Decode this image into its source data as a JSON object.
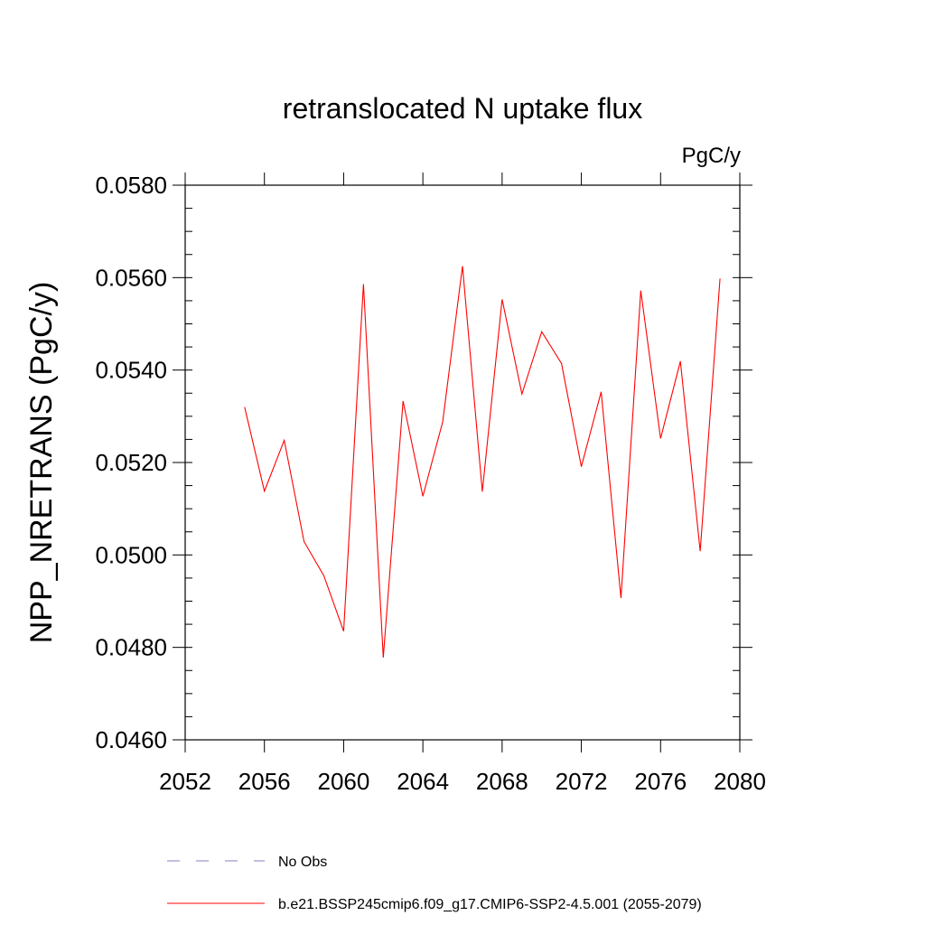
{
  "chart_data": {
    "type": "line",
    "title": "retranslocated N uptake flux",
    "units_label": "PgC/y",
    "ylabel": "NPP_NRETRANS  (PgC/y)",
    "xlabel": "",
    "xlim": [
      2052,
      2080
    ],
    "ylim": [
      0.046,
      0.058
    ],
    "x_ticks": [
      2052,
      2056,
      2060,
      2064,
      2068,
      2072,
      2076,
      2080
    ],
    "x_tick_labels": [
      "2052",
      "2056",
      "2060",
      "2064",
      "2068",
      "2072",
      "2076",
      "2080"
    ],
    "y_ticks": [
      0.046,
      0.048,
      0.05,
      0.052,
      0.054,
      0.056,
      0.058
    ],
    "y_tick_labels": [
      "0.0460",
      "0.0480",
      "0.0500",
      "0.0520",
      "0.0540",
      "0.0560",
      "0.0580"
    ],
    "grid": false,
    "legend_position": "bottom",
    "legend": [
      {
        "label": "No Obs",
        "style": "dashed",
        "color": "#8080c0"
      },
      {
        "label": "b.e21.BSSP245cmip6.f09_g17.CMIP6-SSP2-4.5.001 (2055-2079)",
        "style": "solid",
        "color": "#ff0000"
      }
    ],
    "series": [
      {
        "name": "b.e21.BSSP245cmip6.f09_g17.CMIP6-SSP2-4.5.001 (2055-2079)",
        "color": "#ff0000",
        "x": [
          2055,
          2056,
          2057,
          2058,
          2059,
          2060,
          2061,
          2062,
          2063,
          2064,
          2065,
          2066,
          2067,
          2068,
          2069,
          2070,
          2071,
          2072,
          2073,
          2074,
          2075,
          2076,
          2077,
          2078,
          2079
        ],
        "y": [
          0.0532,
          0.05138,
          0.05248,
          0.05029,
          0.04955,
          0.04835,
          0.05586,
          0.04778,
          0.05333,
          0.05127,
          0.05288,
          0.05625,
          0.05137,
          0.05553,
          0.05348,
          0.05483,
          0.05414,
          0.05191,
          0.05353,
          0.04907,
          0.05572,
          0.05252,
          0.05419,
          0.05008,
          0.05598
        ]
      }
    ]
  }
}
